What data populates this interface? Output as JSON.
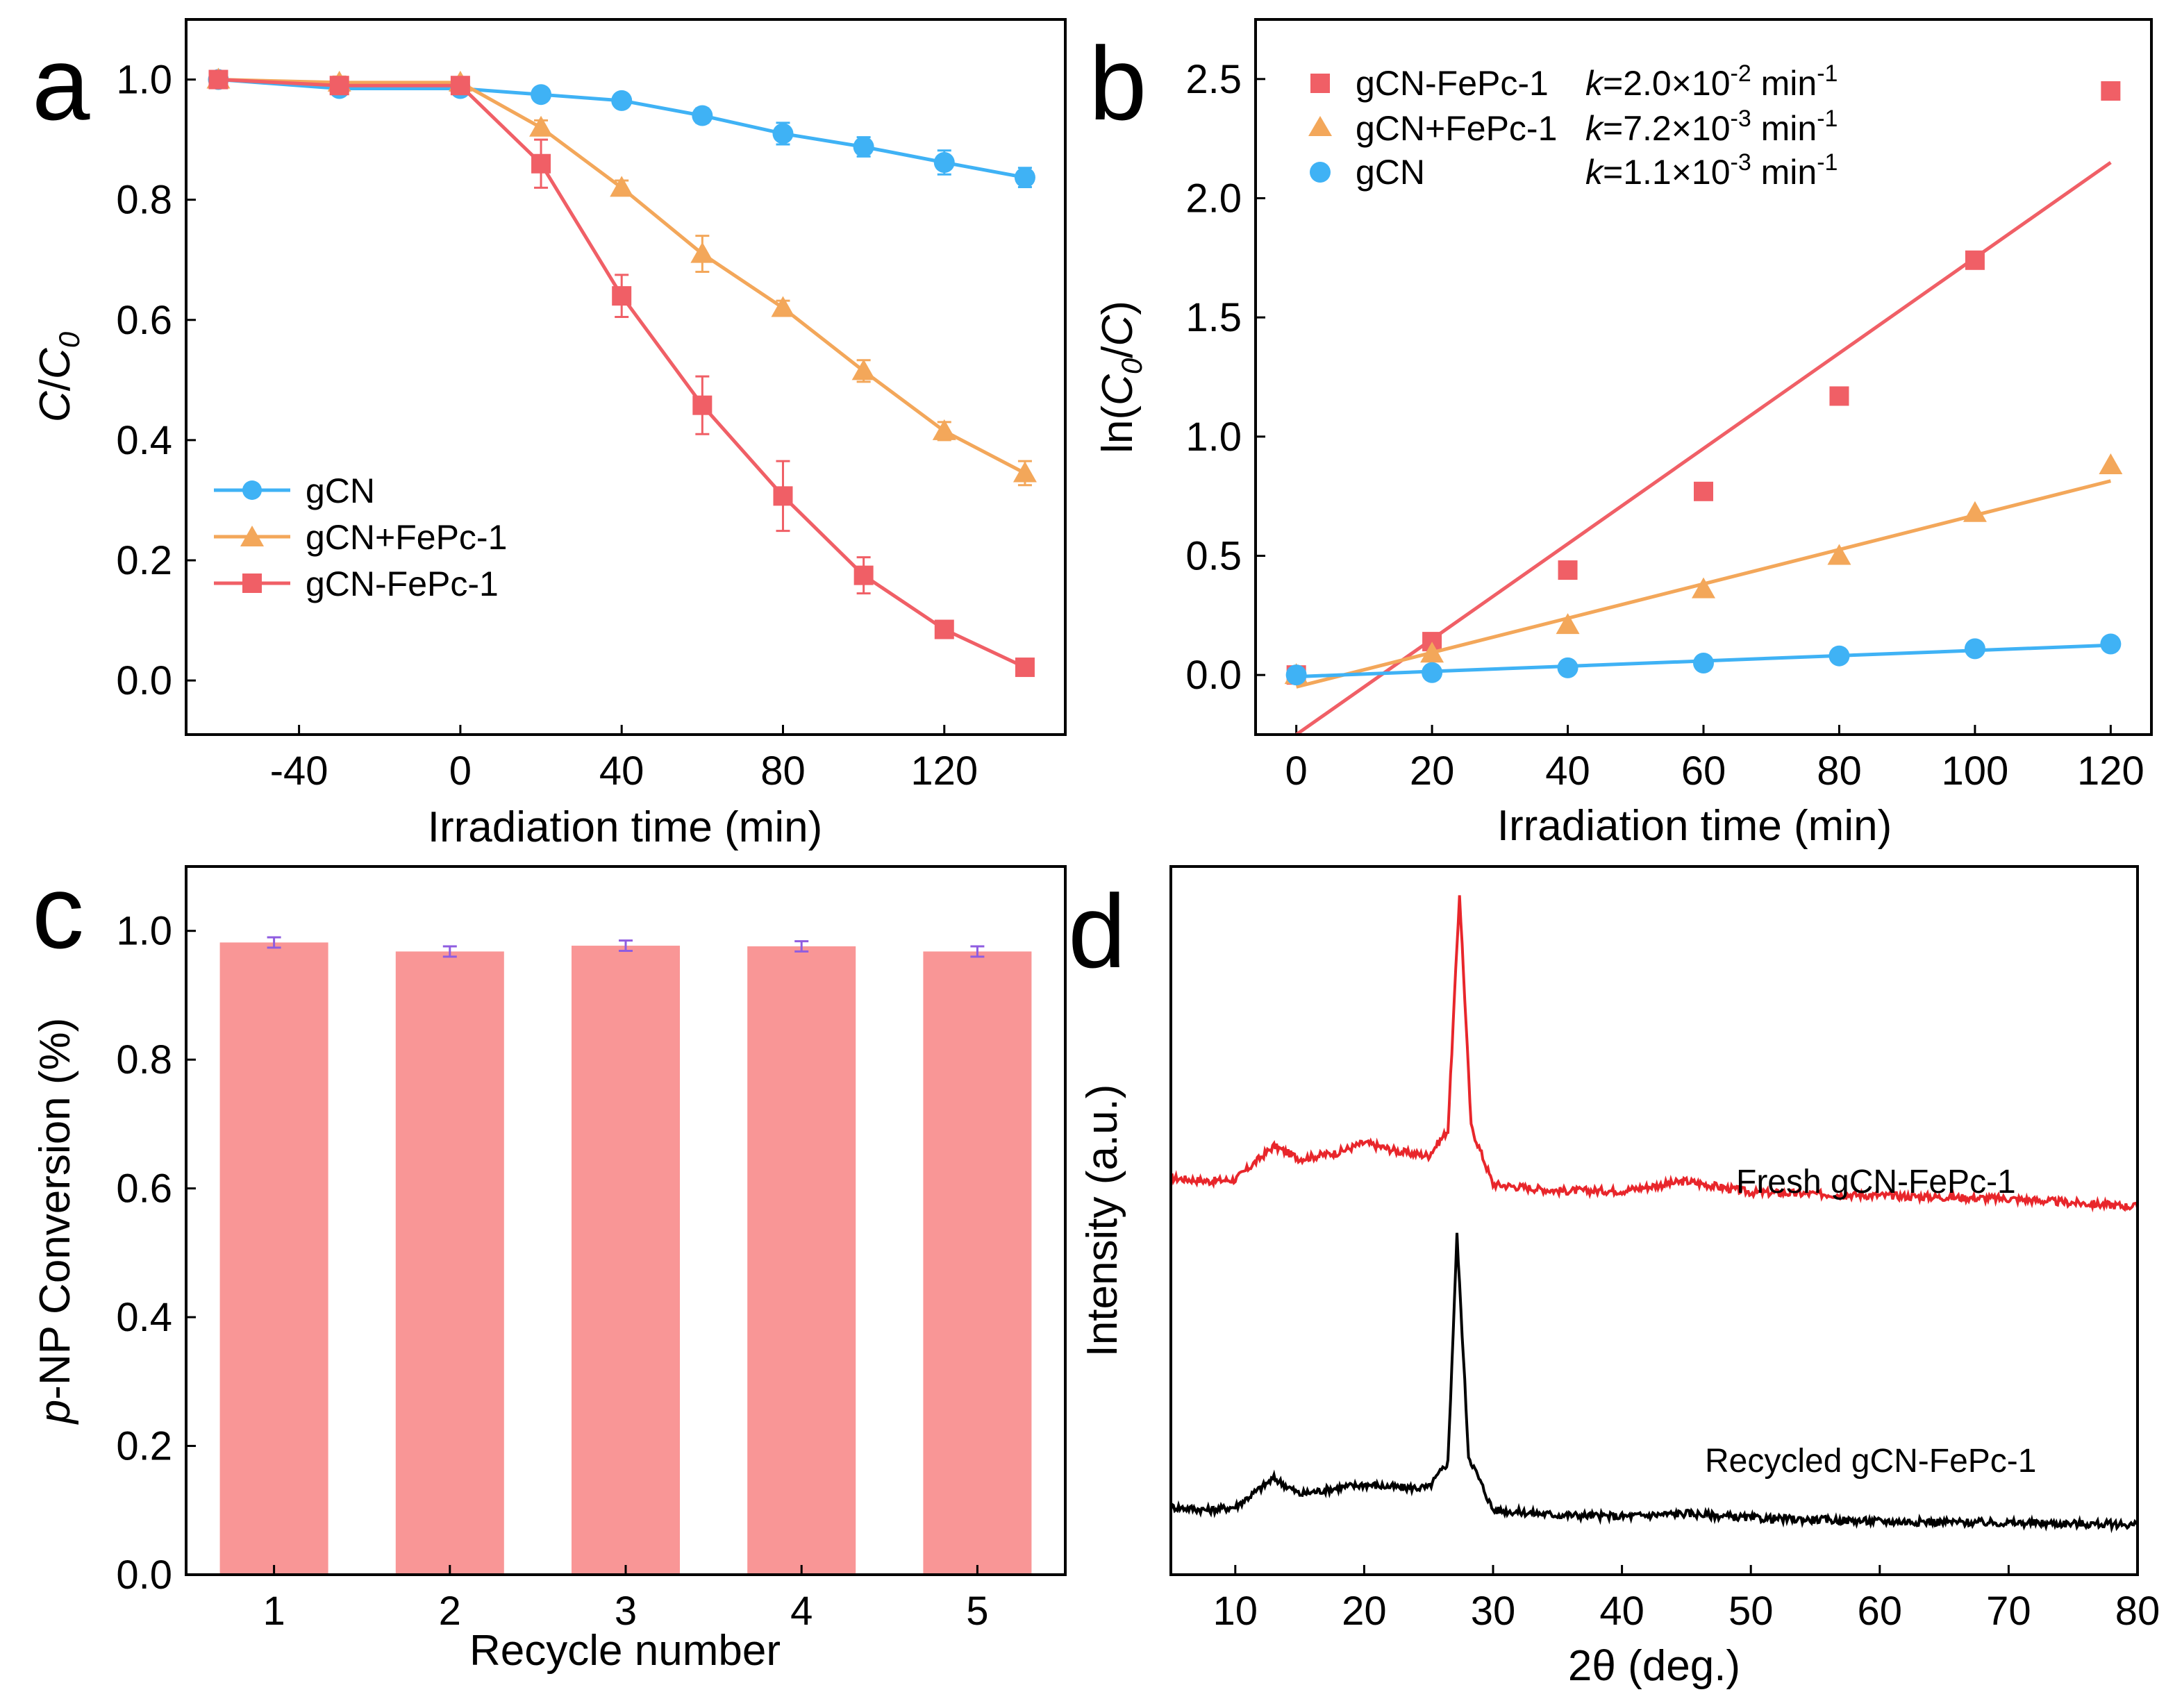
{
  "colors": {
    "gcn": "#3fb2f5",
    "gcn_plus": "#f3a75a",
    "gcn_fepc": "#f05f66",
    "bar": "#f99696",
    "errorbar": "#8f5ce0",
    "fresh_xrd": "#e8262b",
    "recycled_xrd": "#000000"
  },
  "chart_data": [
    {
      "panel": "a",
      "type": "line",
      "xlabel": "Irradiation time (min)",
      "ylabel": "C/C0",
      "ylabel_parts": {
        "c": "C",
        "slash": "/",
        "c0": "C",
        "sub": "0"
      },
      "xlim": [
        -68,
        150
      ],
      "ylim": [
        -0.09,
        1.1
      ],
      "xticks": [
        -40,
        0,
        40,
        80,
        120
      ],
      "yticks": [
        0.0,
        0.2,
        0.4,
        0.6,
        0.8,
        1.0
      ],
      "ytick_labels": [
        "0.0",
        "0.2",
        "0.4",
        "0.6",
        "0.8",
        "1.0"
      ],
      "legend_position": "lower-left",
      "series": [
        {
          "name": "gCN",
          "marker": "circle",
          "color": "#3fb2f5",
          "x": [
            -60,
            -30,
            0,
            20,
            40,
            60,
            80,
            100,
            120,
            140
          ],
          "y": [
            1.0,
            0.985,
            0.985,
            0.975,
            0.965,
            0.94,
            0.91,
            0.888,
            0.862,
            0.837
          ],
          "err": [
            0.005,
            0.01,
            0.01,
            0.008,
            0.01,
            0.012,
            0.018,
            0.016,
            0.02,
            0.016
          ]
        },
        {
          "name": "gCN+FePc-1",
          "marker": "triangle",
          "color": "#f3a75a",
          "x": [
            -60,
            -30,
            0,
            20,
            40,
            60,
            80,
            100,
            120,
            140
          ],
          "y": [
            1.0,
            0.995,
            0.995,
            0.92,
            0.82,
            0.71,
            0.62,
            0.515,
            0.415,
            0.345
          ],
          "err": [
            0.005,
            0.01,
            0.008,
            0.012,
            0.012,
            0.03,
            0.012,
            0.018,
            0.015,
            0.02
          ]
        },
        {
          "name": "gCN-FePc-1",
          "marker": "square",
          "color": "#f05f66",
          "x": [
            -60,
            -30,
            0,
            20,
            40,
            60,
            80,
            100,
            120,
            140
          ],
          "y": [
            1.0,
            0.99,
            0.99,
            0.86,
            0.64,
            0.458,
            0.307,
            0.175,
            0.085,
            0.022
          ],
          "err": [
            0.005,
            0.008,
            0.008,
            0.04,
            0.035,
            0.048,
            0.058,
            0.03,
            0.01,
            0.008
          ]
        }
      ]
    },
    {
      "panel": "b",
      "type": "scatter",
      "xlabel": "Irradiation time (min)",
      "ylabel": "ln(C0/C)",
      "ylabel_parts": {
        "prefix": "ln(",
        "c0": "C",
        "sub": "0",
        "slash": "/",
        "c": "C",
        "suffix": ")"
      },
      "xlim": [
        -6,
        126
      ],
      "ylim": [
        -0.25,
        2.75
      ],
      "xticks": [
        0,
        20,
        40,
        60,
        80,
        100,
        120
      ],
      "yticks": [
        0.0,
        0.5,
        1.0,
        1.5,
        2.0,
        2.5
      ],
      "ytick_labels": [
        "0.0",
        "0.5",
        "1.0",
        "1.5",
        "2.0",
        "2.5"
      ],
      "legend_position": "top-left",
      "series": [
        {
          "name": "gCN-FePc-1",
          "marker": "square",
          "color": "#f05f66",
          "k_label": "=2.0×10",
          "k_exp": "-2",
          "k_unit": " min",
          "k_unit_exp": "-1",
          "x": [
            0,
            20,
            40,
            60,
            80,
            100,
            120
          ],
          "y": [
            0.0,
            0.14,
            0.44,
            0.77,
            1.17,
            1.74,
            2.45
          ],
          "fit": {
            "slope": 0.02,
            "intercept": -0.25
          }
        },
        {
          "name": "gCN+FePc-1",
          "marker": "triangle",
          "color": "#f3a75a",
          "k_label": "=7.2×10",
          "k_exp": "-3",
          "k_unit": " min",
          "k_unit_exp": "-1",
          "x": [
            0,
            20,
            40,
            60,
            80,
            100,
            120
          ],
          "y": [
            0.0,
            0.09,
            0.21,
            0.36,
            0.5,
            0.68,
            0.88
          ],
          "fit": {
            "slope": 0.0072,
            "intercept": -0.05
          }
        },
        {
          "name": "gCN",
          "marker": "circle",
          "color": "#3fb2f5",
          "k_label": "=1.1×10",
          "k_exp": "-3",
          "k_unit": " min",
          "k_unit_exp": "-1",
          "x": [
            0,
            20,
            40,
            60,
            80,
            100,
            120
          ],
          "y": [
            0.0,
            0.01,
            0.03,
            0.05,
            0.08,
            0.11,
            0.13
          ],
          "fit": {
            "slope": 0.0011,
            "intercept": -0.007
          }
        }
      ]
    },
    {
      "panel": "c",
      "type": "bar",
      "xlabel": "Recycle number",
      "ylabel": "p-NP Conversion (%)",
      "ylabel_parts": {
        "italic": "p",
        "rest": "-NP Conversion (%)"
      },
      "categories": [
        "1",
        "2",
        "3",
        "4",
        "5"
      ],
      "values": [
        0.982,
        0.968,
        0.977,
        0.976,
        0.968
      ],
      "err": [
        0.008,
        0.008,
        0.008,
        0.008,
        0.008
      ],
      "ylim": [
        0.0,
        1.1
      ],
      "yticks": [
        0.0,
        0.2,
        0.4,
        0.6,
        0.8,
        1.0
      ],
      "ytick_labels": [
        "0.0",
        "0.2",
        "0.4",
        "0.6",
        "0.8",
        "1.0"
      ]
    },
    {
      "panel": "d",
      "type": "line",
      "xlabel": "2θ (deg.)",
      "ylabel": "Intensity (a.u.)",
      "xlim": [
        5,
        80
      ],
      "ylim": [
        0,
        1
      ],
      "xticks": [
        10,
        20,
        30,
        40,
        50,
        60,
        70,
        80
      ],
      "series": [
        {
          "name": "Fresh gCN-FePc-1",
          "color": "#e8262b",
          "offset": 0.5,
          "baseline": [
            [
              5,
              0.09
            ],
            [
              8,
              0.08
            ],
            [
              10,
              0.085
            ],
            [
              13,
              0.19
            ],
            [
              15,
              0.15
            ],
            [
              18,
              0.17
            ],
            [
              20,
              0.2
            ],
            [
              23,
              0.17
            ],
            [
              25,
              0.16
            ],
            [
              26.5,
              0.24
            ],
            [
              27.4,
              0.98
            ],
            [
              28.3,
              0.25
            ],
            [
              30,
              0.07
            ],
            [
              35,
              0.05
            ],
            [
              40,
              0.05
            ],
            [
              45,
              0.08
            ],
            [
              50,
              0.045
            ],
            [
              60,
              0.035
            ],
            [
              70,
              0.025
            ],
            [
              80,
              0.0
            ]
          ]
        },
        {
          "name": "Recycled gCN-FePc-1",
          "color": "#000000",
          "offset": 0.0,
          "baseline": [
            [
              5,
              0.06
            ],
            [
              8,
              0.05
            ],
            [
              10,
              0.06
            ],
            [
              13,
              0.15
            ],
            [
              15,
              0.1
            ],
            [
              18,
              0.12
            ],
            [
              20,
              0.13
            ],
            [
              23,
              0.12
            ],
            [
              25,
              0.12
            ],
            [
              26.5,
              0.2
            ],
            [
              27.2,
              0.91
            ],
            [
              28.1,
              0.22
            ],
            [
              30,
              0.05
            ],
            [
              35,
              0.035
            ],
            [
              40,
              0.03
            ],
            [
              45,
              0.04
            ],
            [
              50,
              0.025
            ],
            [
              60,
              0.015
            ],
            [
              70,
              0.01
            ],
            [
              80,
              0.005
            ]
          ]
        }
      ]
    }
  ]
}
